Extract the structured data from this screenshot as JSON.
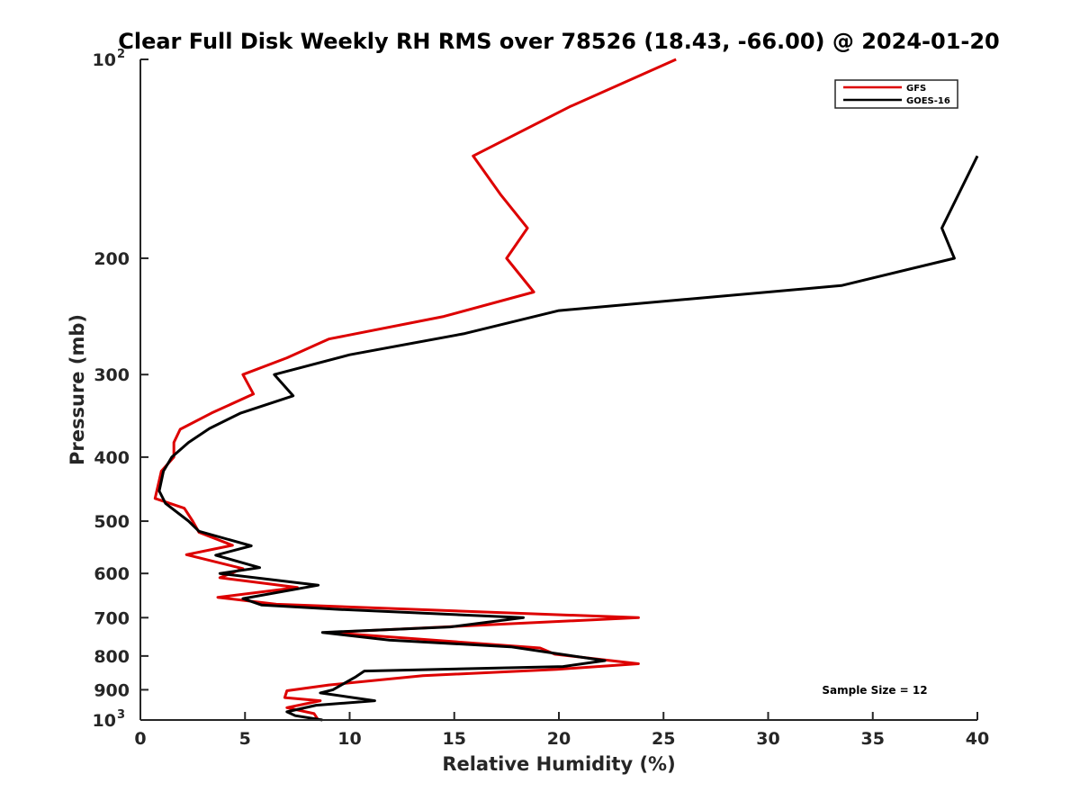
{
  "chart_data": {
    "type": "line",
    "title": "Clear Full Disk Weekly RH RMS over 78526 (18.43, -66.00) @ 2024-01-20",
    "xlabel": "Relative Humidity (%)",
    "ylabel": "Pressure (mb)",
    "xlim": [
      0,
      40
    ],
    "ylim": [
      100,
      1000
    ],
    "y_scale": "log",
    "y_reversed": true,
    "grid": false,
    "legend_position": "top-right",
    "x_ticks": [
      0,
      5,
      10,
      15,
      20,
      25,
      30,
      35,
      40
    ],
    "x_tick_labels": [
      "0",
      "5",
      "10",
      "15",
      "20",
      "25",
      "30",
      "35",
      "40"
    ],
    "y_ticks": [
      {
        "value": 100,
        "base": "10",
        "exp": "2"
      },
      {
        "value": 200,
        "label": "200"
      },
      {
        "value": 300,
        "label": "300"
      },
      {
        "value": 400,
        "label": "400"
      },
      {
        "value": 500,
        "label": "500"
      },
      {
        "value": 600,
        "label": "600"
      },
      {
        "value": 700,
        "label": "700"
      },
      {
        "value": 800,
        "label": "800"
      },
      {
        "value": 900,
        "label": "900"
      },
      {
        "value": 1000,
        "base": "10",
        "exp": "3"
      }
    ],
    "annotation": "Sample Size = 12",
    "series": [
      {
        "name": "GFS",
        "color": "#dd0000",
        "points": [
          [
            25.6,
            100
          ],
          [
            20.5,
            118
          ],
          [
            15.9,
            140
          ],
          [
            17.2,
            160
          ],
          [
            18.5,
            180
          ],
          [
            17.5,
            200
          ],
          [
            18.8,
            225
          ],
          [
            14.5,
            245
          ],
          [
            9.0,
            265
          ],
          [
            7.0,
            283
          ],
          [
            4.9,
            300
          ],
          [
            5.4,
            321
          ],
          [
            3.4,
            343
          ],
          [
            1.9,
            363
          ],
          [
            1.6,
            380
          ],
          [
            1.6,
            400
          ],
          [
            1.0,
            420
          ],
          [
            0.7,
            462
          ],
          [
            2.1,
            478
          ],
          [
            2.5,
            500
          ],
          [
            2.8,
            520
          ],
          [
            4.4,
            544
          ],
          [
            2.2,
            562
          ],
          [
            4.9,
            590
          ],
          [
            3.8,
            609
          ],
          [
            7.5,
            630
          ],
          [
            3.7,
            652
          ],
          [
            6.5,
            668
          ],
          [
            23.8,
            700
          ],
          [
            9.0,
            737
          ],
          [
            19.1,
            778
          ],
          [
            19.8,
            795
          ],
          [
            23.8,
            822
          ],
          [
            19.9,
            838
          ],
          [
            13.5,
            857
          ],
          [
            9.0,
            885
          ],
          [
            7.0,
            903
          ],
          [
            6.9,
            925
          ],
          [
            8.6,
            935
          ],
          [
            7.0,
            958
          ],
          [
            8.3,
            978
          ],
          [
            8.5,
            1000
          ]
        ]
      },
      {
        "name": "GOES-16",
        "color": "#000000",
        "points": [
          [
            40.0,
            140
          ],
          [
            38.3,
            180
          ],
          [
            38.9,
            200
          ],
          [
            33.5,
            220
          ],
          [
            20.0,
            240
          ],
          [
            15.5,
            260
          ],
          [
            10.0,
            280
          ],
          [
            6.4,
            300
          ],
          [
            7.3,
            323
          ],
          [
            4.8,
            343
          ],
          [
            3.3,
            362
          ],
          [
            2.3,
            380
          ],
          [
            1.5,
            400
          ],
          [
            1.1,
            420
          ],
          [
            0.9,
            450
          ],
          [
            1.2,
            470
          ],
          [
            2.3,
            500
          ],
          [
            2.8,
            518
          ],
          [
            5.3,
            545
          ],
          [
            3.6,
            563
          ],
          [
            5.7,
            588
          ],
          [
            3.8,
            600
          ],
          [
            8.5,
            625
          ],
          [
            4.9,
            655
          ],
          [
            5.8,
            670
          ],
          [
            9.5,
            680
          ],
          [
            18.3,
            700
          ],
          [
            14.8,
            723
          ],
          [
            8.7,
            737
          ],
          [
            11.9,
            757
          ],
          [
            17.7,
            775
          ],
          [
            19.5,
            790
          ],
          [
            22.2,
            813
          ],
          [
            20.2,
            830
          ],
          [
            10.7,
            843
          ],
          [
            10.3,
            860
          ],
          [
            9.2,
            900
          ],
          [
            8.6,
            910
          ],
          [
            11.2,
            935
          ],
          [
            8.4,
            950
          ],
          [
            7.0,
            972
          ],
          [
            7.4,
            985
          ],
          [
            8.7,
            1000
          ]
        ]
      }
    ]
  }
}
